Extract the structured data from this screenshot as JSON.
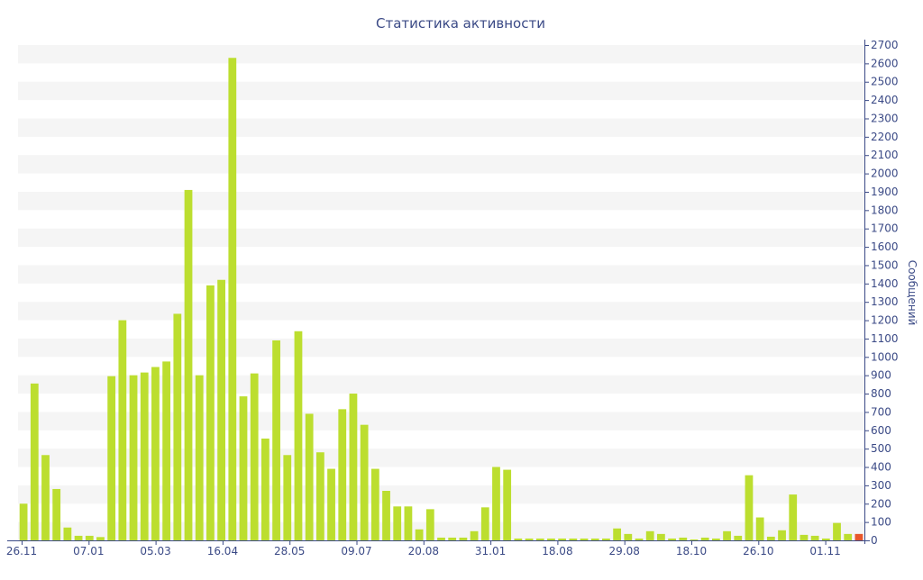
{
  "chart_data": {
    "type": "bar",
    "title": "Статистика активности",
    "xlabel": "",
    "ylabel": "Сообщений",
    "ylim": [
      0,
      2700
    ],
    "y_ticks": [
      0,
      100,
      200,
      300,
      400,
      500,
      600,
      700,
      800,
      900,
      1000,
      1100,
      1200,
      1300,
      1400,
      1500,
      1600,
      1700,
      1800,
      1900,
      2000,
      2100,
      2200,
      2300,
      2400,
      2500,
      2600,
      2700
    ],
    "y_axis_side": "right",
    "grid": "alternating horizontal bands",
    "x_tick_labels": [
      "26.11",
      "07.01",
      "05.03",
      "16.04",
      "28.05",
      "09.07",
      "20.08",
      "31.01",
      "18.08",
      "29.08",
      "18.10",
      "26.10",
      "01.11"
    ],
    "values": [
      200,
      855,
      465,
      280,
      70,
      25,
      25,
      18,
      895,
      1200,
      900,
      915,
      945,
      975,
      1235,
      1910,
      900,
      1390,
      1420,
      2630,
      785,
      910,
      555,
      1090,
      465,
      1140,
      690,
      480,
      390,
      715,
      800,
      630,
      390,
      270,
      185,
      185,
      60,
      170,
      15,
      15,
      15,
      50,
      180,
      400,
      385,
      10,
      10,
      10,
      10,
      10,
      10,
      10,
      10,
      10,
      65,
      35,
      10,
      50,
      35,
      10,
      15,
      5,
      15,
      10,
      50,
      25,
      355,
      125,
      20,
      55,
      250,
      30,
      25,
      10,
      95,
      35,
      35
    ],
    "colors": {
      "bar": "#bcde2f",
      "last_bar": "#e8572b",
      "band": "#f5f5f5",
      "axis": "#3b4a86"
    }
  }
}
